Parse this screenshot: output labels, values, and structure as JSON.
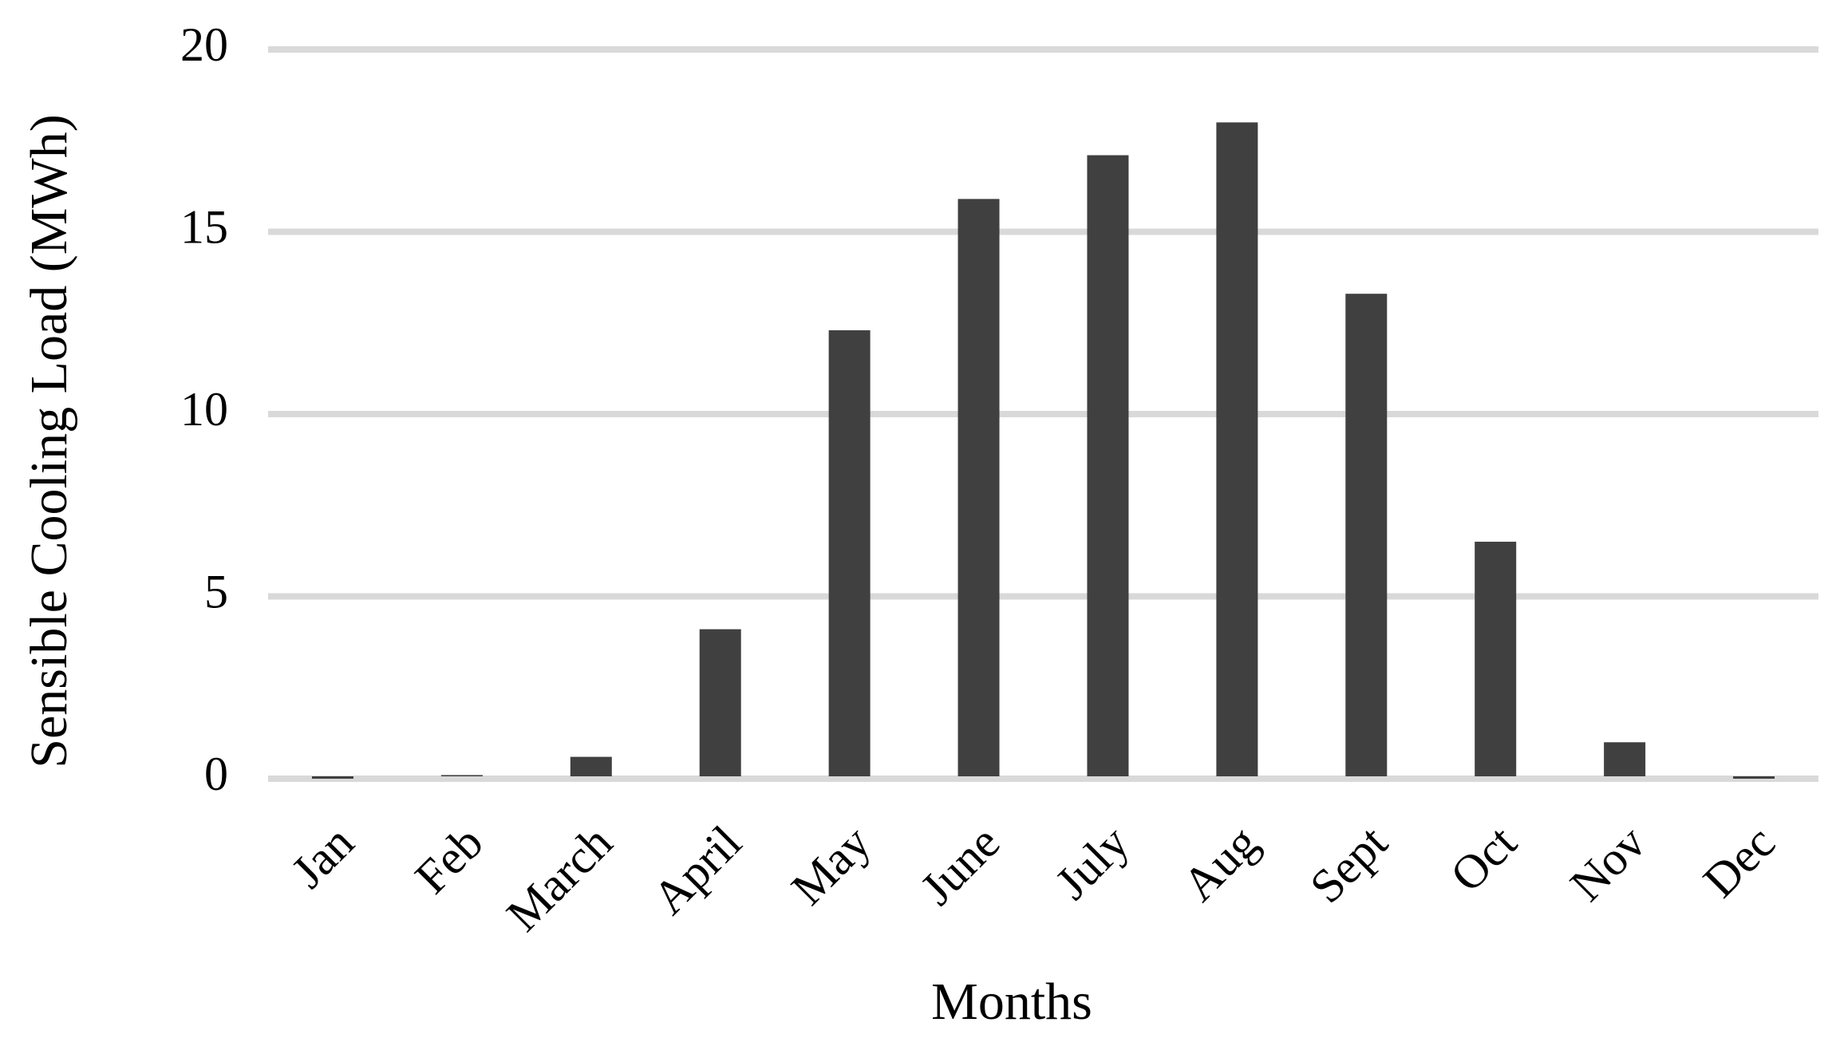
{
  "chart_data": {
    "type": "bar",
    "x_label": "Months",
    "y_label": "Sensible Cooling Load (MWh)",
    "categories": [
      "Jan",
      "Feb",
      "March",
      "April",
      "May",
      "June",
      "July",
      "Aug",
      "Sept",
      "Oct",
      "Nov",
      "Dec"
    ],
    "values": [
      0,
      0.1,
      0.6,
      4.1,
      12.3,
      15.9,
      17.1,
      18.0,
      13.3,
      6.5,
      1.0,
      0
    ],
    "color": "#404040",
    "ylim": [
      0,
      20
    ],
    "yticks": [
      0,
      5,
      10,
      15,
      20
    ],
    "grid": true
  }
}
